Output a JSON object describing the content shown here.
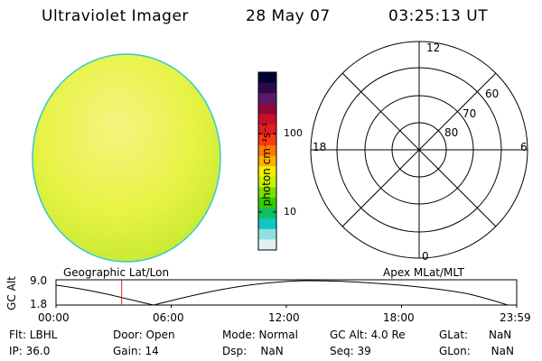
{
  "header": {
    "instrument": "Ultraviolet Imager",
    "date": "28 May 07",
    "time": "03:25:13 UT"
  },
  "colorbar": {
    "label": "photon cm⁻²s⁻¹",
    "ticks": [
      "100",
      "10"
    ],
    "stops": [
      "#000033",
      "#2a0a4a",
      "#5a1a6a",
      "#8b0a3a",
      "#c8102a",
      "#e01e1e",
      "#ff3a10",
      "#ff7a00",
      "#ffb000",
      "#f0f000",
      "#c8f000",
      "#7ae000",
      "#30d000",
      "#10c060",
      "#10c8c0",
      "#90e0e0",
      "#e0f0f0"
    ]
  },
  "polar": {
    "mlt_labels": [
      "12",
      "18",
      "6",
      "0"
    ],
    "lat_labels": [
      "60",
      "70",
      "80"
    ]
  },
  "panel_labels": {
    "left": "Geographic Lat/Lon",
    "right": "Apex MLat/MLT"
  },
  "altitude_plot": {
    "ylabel": "GC Alt",
    "y_ticks": [
      "9.0",
      "1.8"
    ],
    "x_ticks": [
      "00:00",
      "06:00",
      "12:00",
      "18:00",
      "23:59"
    ],
    "current_time_hours": 3.42
  },
  "info": {
    "filter": "Flt: LBHL",
    "ip": "IP: 36.0",
    "door": "Door: Open",
    "gain": "Gain: 14",
    "mode": "Mode: Normal",
    "dsp": "Dsp:    NaN",
    "gc_alt": "GC Alt: 4.0 Re",
    "seq": "Seq: 39",
    "glat": "GLat:      NaN",
    "glon": "GLon:      NaN"
  }
}
